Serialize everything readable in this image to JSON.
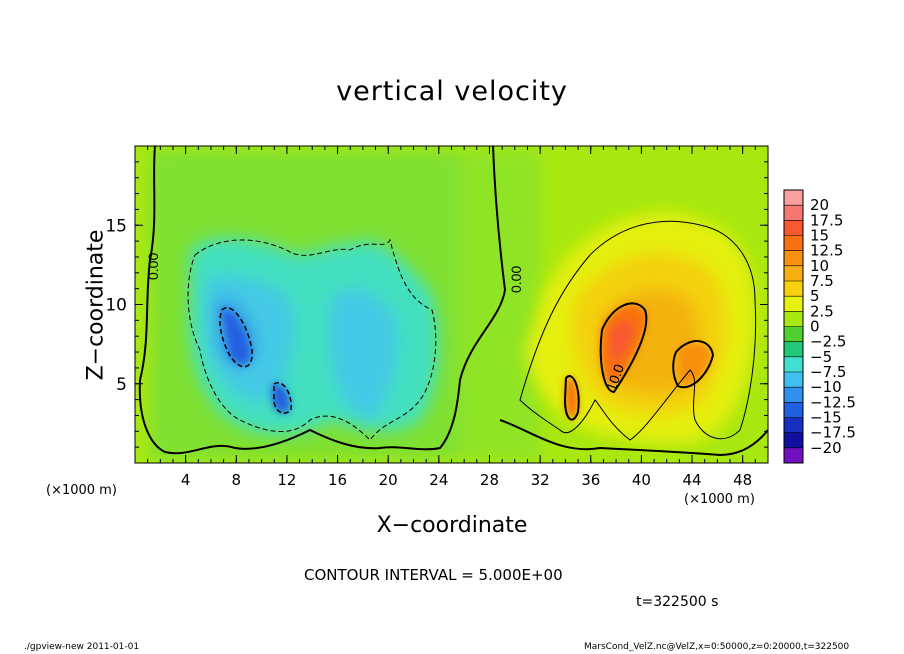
{
  "footer": {
    "left": "./gpview-new   2011-01-01",
    "right": "MarsCond_VelZ.nc@VelZ,x=0:50000,z=0:20000,t=322500"
  },
  "annotations": {
    "contour_interval": "CONTOUR INTERVAL = 5.000E+00",
    "time": "t=322500 s",
    "x_unit_left": "(×1000 m)",
    "x_unit_right": "(×1000 m)",
    "contour_labels": [
      "0.00",
      "0.00",
      "10.0"
    ]
  },
  "chart_data": {
    "type": "heatmap",
    "title": "vertical velocity",
    "xlabel": "X−coordinate",
    "ylabel": "Z−coordinate",
    "xlim": [
      0,
      50
    ],
    "ylim": [
      0,
      20
    ],
    "x_ticks": [
      "4",
      "8",
      "12",
      "16",
      "20",
      "24",
      "28",
      "32",
      "36",
      "40",
      "44",
      "48"
    ],
    "y_ticks": [
      "5",
      "10",
      "15"
    ],
    "grid": false,
    "colorbar": {
      "position": "right",
      "labels": [
        "20",
        "17.5",
        "15",
        "12.5",
        "10",
        "7.5",
        "5",
        "2.5",
        "0",
        "−2.5",
        "−5",
        "−7.5",
        "−10",
        "−12.5",
        "−15",
        "−17.5",
        "−20"
      ],
      "colors": [
        "#f8a0a0",
        "#f87870",
        "#f85830",
        "#f87010",
        "#f89010",
        "#f8b010",
        "#f8d010",
        "#e8f010",
        "#a8e810",
        "#50d030",
        "#20c878",
        "#40e0d0",
        "#40c0f0",
        "#3090f0",
        "#2060e0",
        "#1830c0",
        "#1010a0",
        "#7010c0"
      ]
    }
  }
}
